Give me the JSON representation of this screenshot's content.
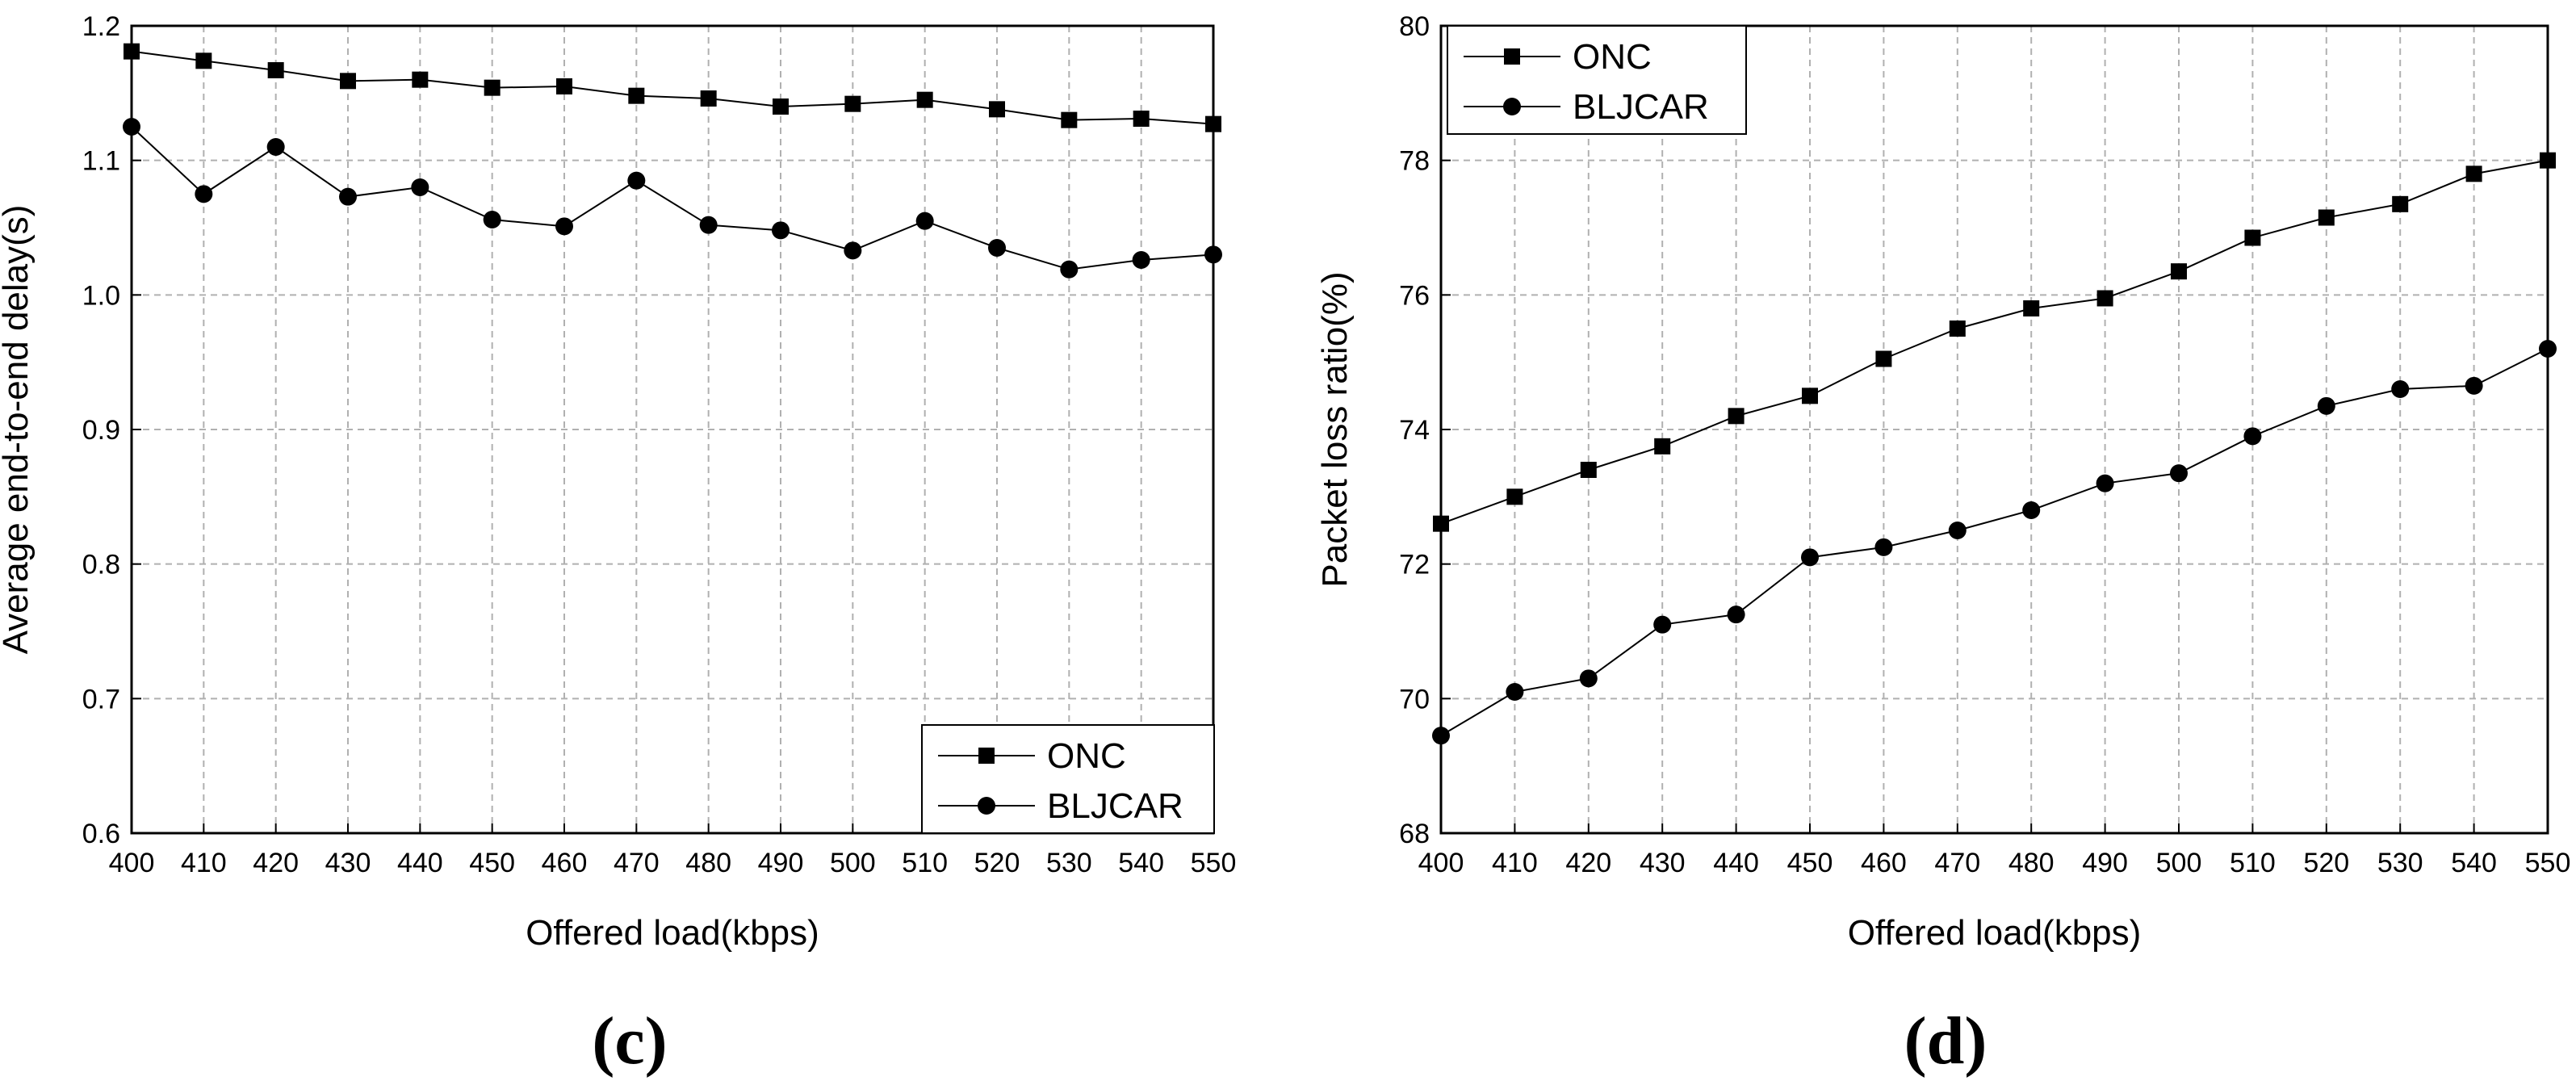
{
  "chart_data": [
    {
      "type": "line",
      "panel_label": "(c)",
      "xlabel": "Offered load(kbps)",
      "ylabel": "Average end-to-end delay(s)",
      "xlim": [
        400,
        550
      ],
      "ylim": [
        0.6,
        1.2
      ],
      "xticks": [
        400,
        410,
        420,
        430,
        440,
        450,
        460,
        470,
        480,
        490,
        500,
        510,
        520,
        530,
        540,
        550
      ],
      "yticks": [
        0.6,
        0.7,
        0.8,
        0.9,
        1.0,
        1.1,
        1.2
      ],
      "ytick_labels": [
        "0.6",
        "0.7",
        "0.8",
        "0.9",
        "1.0",
        "1.1",
        "1.2"
      ],
      "grid": true,
      "legend_position": "bottom-right",
      "x": [
        400,
        410,
        420,
        430,
        440,
        450,
        460,
        470,
        480,
        490,
        500,
        510,
        520,
        530,
        540,
        550
      ],
      "series": [
        {
          "name": "ONC",
          "marker": "square",
          "values": [
            1.181,
            1.174,
            1.167,
            1.159,
            1.16,
            1.154,
            1.155,
            1.148,
            1.146,
            1.14,
            1.142,
            1.145,
            1.138,
            1.13,
            1.131,
            1.127
          ]
        },
        {
          "name": "BLJCAR",
          "marker": "circle",
          "values": [
            1.125,
            1.075,
            1.11,
            1.073,
            1.08,
            1.056,
            1.051,
            1.085,
            1.052,
            1.048,
            1.033,
            1.055,
            1.035,
            1.019,
            1.026,
            1.03
          ]
        }
      ]
    },
    {
      "type": "line",
      "panel_label": "(d)",
      "xlabel": "Offered load(kbps)",
      "ylabel": "Packet loss ratio(%)",
      "xlim": [
        400,
        550
      ],
      "ylim": [
        68,
        80
      ],
      "xticks": [
        400,
        410,
        420,
        430,
        440,
        450,
        460,
        470,
        480,
        490,
        500,
        510,
        520,
        530,
        540,
        550
      ],
      "yticks": [
        68,
        70,
        72,
        74,
        76,
        78,
        80
      ],
      "ytick_labels": [
        "68",
        "70",
        "72",
        "74",
        "76",
        "78",
        "80"
      ],
      "grid": true,
      "legend_position": "top-left",
      "x": [
        400,
        410,
        420,
        430,
        440,
        450,
        460,
        470,
        480,
        490,
        500,
        510,
        520,
        530,
        540,
        550
      ],
      "series": [
        {
          "name": "ONC",
          "marker": "square",
          "values": [
            72.6,
            73.0,
            73.4,
            73.75,
            74.2,
            74.5,
            75.05,
            75.5,
            75.8,
            75.95,
            76.35,
            76.85,
            77.15,
            77.35,
            77.8,
            78.0
          ]
        },
        {
          "name": "BLJCAR",
          "marker": "circle",
          "values": [
            69.45,
            70.1,
            70.3,
            71.1,
            71.25,
            72.1,
            72.25,
            72.5,
            72.8,
            73.2,
            73.35,
            73.9,
            74.35,
            74.6,
            74.65,
            75.2
          ]
        }
      ]
    }
  ]
}
